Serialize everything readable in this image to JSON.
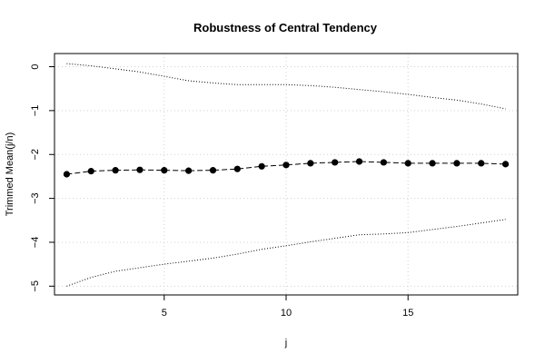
{
  "chart_data": {
    "type": "line",
    "title": "Robustness of Central Tendency",
    "xlabel": "j",
    "ylabel": "Trimmed Mean(j/n)",
    "xlim": [
      0.5,
      19.5
    ],
    "ylim": [
      -5.2,
      0.3
    ],
    "x_ticks": [
      5,
      10,
      15
    ],
    "x_tick_labels": [
      "5",
      "10",
      "15"
    ],
    "y_ticks": [
      0,
      -1,
      -2,
      -3,
      -4,
      -5
    ],
    "y_tick_labels": [
      "0",
      "−1",
      "−2",
      "−3",
      "−4",
      "−5"
    ],
    "grid": true,
    "x": [
      1,
      2,
      3,
      4,
      5,
      6,
      7,
      8,
      9,
      10,
      11,
      12,
      13,
      14,
      15,
      16,
      17,
      18,
      19
    ],
    "series": [
      {
        "style": "dashed-points",
        "values": [
          -2.45,
          -2.38,
          -2.36,
          -2.35,
          -2.36,
          -2.37,
          -2.36,
          -2.33,
          -2.27,
          -2.24,
          -2.2,
          -2.18,
          -2.16,
          -2.18,
          -2.2,
          -2.2,
          -2.2,
          -2.2,
          -2.22
        ]
      },
      {
        "style": "dotted",
        "values": [
          0.07,
          0.02,
          -0.05,
          -0.12,
          -0.22,
          -0.32,
          -0.37,
          -0.41,
          -0.41,
          -0.41,
          -0.43,
          -0.47,
          -0.52,
          -0.57,
          -0.63,
          -0.7,
          -0.76,
          -0.85,
          -0.96
        ]
      },
      {
        "style": "dotted",
        "values": [
          -5.0,
          -4.8,
          -4.66,
          -4.58,
          -4.5,
          -4.43,
          -4.36,
          -4.27,
          -4.16,
          -4.08,
          -3.99,
          -3.91,
          -3.83,
          -3.81,
          -3.78,
          -3.71,
          -3.64,
          -3.56,
          -3.48
        ]
      }
    ]
  }
}
